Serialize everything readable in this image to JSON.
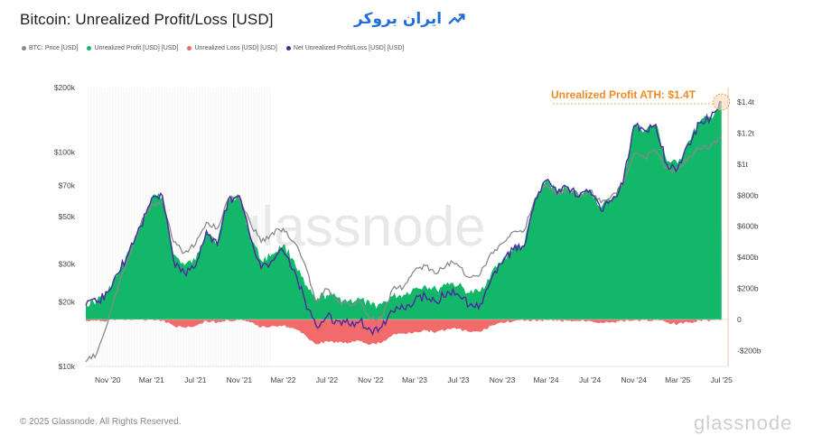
{
  "title": "Bitcoin: Unrealized Profit/Loss [USD]",
  "brand": {
    "text": "ایران بروکر",
    "icon": "trend-arrow-icon",
    "color": "#1f6fd8"
  },
  "legend": [
    {
      "label": "BTC: Price [USD]",
      "color": "#8a8a8a"
    },
    {
      "label": "Unrealized Profit [USD] [USD]",
      "color": "#12b76a"
    },
    {
      "label": "Unrealized Loss [USD] [USD]",
      "color": "#f26b6b"
    },
    {
      "label": "Net Unrealized Profit/Loss [USD] [USD]",
      "color": "#4b2a9e"
    }
  ],
  "watermark": "glassnode",
  "footer": {
    "copyright": "© 2025 Glassnode. All Rights Reserved.",
    "logo": "glassnode"
  },
  "chart_data": {
    "type": "area",
    "annotation": {
      "text": "Unrealized Profit ATH: $1.4T",
      "x": "2025-07",
      "y": 1.4
    },
    "x_ticks": [
      "Nov '20",
      "Mar '21",
      "Jul '21",
      "Nov '21",
      "Mar '22",
      "Jul '22",
      "Nov '22",
      "Mar '23",
      "Jul '23",
      "Nov '23",
      "Mar '24",
      "Jul '24",
      "Nov '24",
      "Mar '25",
      "Jul '25"
    ],
    "left_axis": {
      "scale": "log",
      "unit": "USD",
      "ticks": [
        "$10k",
        "$20k",
        "$30k",
        "$50k",
        "$70k",
        "$100k",
        "$200k"
      ],
      "tick_values": [
        10000,
        20000,
        30000,
        50000,
        70000,
        100000,
        200000
      ]
    },
    "right_axis": {
      "scale": "linear",
      "unit": "trillions USD",
      "ticks": [
        "-$200b",
        "0",
        "$200b",
        "$400b",
        "$600b",
        "$800b",
        "$1t",
        "$1.2t",
        "$1.4t"
      ],
      "tick_values": [
        -0.2,
        0,
        0.2,
        0.4,
        0.6,
        0.8,
        1.0,
        1.2,
        1.4
      ],
      "range": [
        -0.2,
        1.4
      ]
    },
    "series": [
      {
        "name": "BTC: Price [USD]",
        "axis": "left",
        "x": [
          "2020-09",
          "2020-10",
          "2020-11",
          "2020-12",
          "2021-01",
          "2021-02",
          "2021-03",
          "2021-04",
          "2021-05",
          "2021-06",
          "2021-07",
          "2021-08",
          "2021-09",
          "2021-10",
          "2021-11",
          "2021-12",
          "2022-01",
          "2022-02",
          "2022-03",
          "2022-04",
          "2022-05",
          "2022-06",
          "2022-07",
          "2022-08",
          "2022-09",
          "2022-10",
          "2022-11",
          "2022-12",
          "2023-01",
          "2023-02",
          "2023-03",
          "2023-04",
          "2023-05",
          "2023-06",
          "2023-07",
          "2023-08",
          "2023-09",
          "2023-10",
          "2023-11",
          "2023-12",
          "2024-01",
          "2024-02",
          "2024-03",
          "2024-04",
          "2024-05",
          "2024-06",
          "2024-07",
          "2024-08",
          "2024-09",
          "2024-10",
          "2024-11",
          "2024-12",
          "2025-01",
          "2025-02",
          "2025-03",
          "2025-04",
          "2025-05",
          "2025-06",
          "2025-07"
        ],
        "values": [
          10500,
          11500,
          16000,
          24000,
          33000,
          46000,
          57000,
          59000,
          38000,
          34000,
          37000,
          47000,
          44000,
          60000,
          62000,
          47000,
          38000,
          42000,
          44000,
          38000,
          30000,
          20000,
          23000,
          20000,
          19500,
          20000,
          16500,
          16800,
          23000,
          23500,
          28000,
          29500,
          27000,
          30500,
          29500,
          26000,
          27000,
          34000,
          37500,
          42500,
          43000,
          61000,
          70000,
          63000,
          67000,
          62000,
          66000,
          58000,
          63000,
          70000,
          97000,
          94000,
          102000,
          84000,
          82000,
          95000,
          104000,
          107000,
          118000
        ]
      },
      {
        "name": "Unrealized Profit [USD] [USD]",
        "axis": "right",
        "x": [
          "2020-09",
          "2020-10",
          "2020-11",
          "2020-12",
          "2021-01",
          "2021-02",
          "2021-03",
          "2021-04",
          "2021-05",
          "2021-06",
          "2021-07",
          "2021-08",
          "2021-09",
          "2021-10",
          "2021-11",
          "2021-12",
          "2022-01",
          "2022-02",
          "2022-03",
          "2022-04",
          "2022-05",
          "2022-06",
          "2022-07",
          "2022-08",
          "2022-09",
          "2022-10",
          "2022-11",
          "2022-12",
          "2023-01",
          "2023-02",
          "2023-03",
          "2023-04",
          "2023-05",
          "2023-06",
          "2023-07",
          "2023-08",
          "2023-09",
          "2023-10",
          "2023-11",
          "2023-12",
          "2024-01",
          "2024-02",
          "2024-03",
          "2024-04",
          "2024-05",
          "2024-06",
          "2024-07",
          "2024-08",
          "2024-09",
          "2024-10",
          "2024-11",
          "2024-12",
          "2025-01",
          "2025-02",
          "2025-03",
          "2025-04",
          "2025-05",
          "2025-06",
          "2025-07"
        ],
        "values": [
          0.1,
          0.12,
          0.18,
          0.3,
          0.45,
          0.6,
          0.78,
          0.8,
          0.42,
          0.35,
          0.38,
          0.58,
          0.5,
          0.78,
          0.8,
          0.55,
          0.38,
          0.42,
          0.48,
          0.38,
          0.22,
          0.12,
          0.16,
          0.14,
          0.12,
          0.13,
          0.09,
          0.1,
          0.15,
          0.16,
          0.2,
          0.22,
          0.19,
          0.24,
          0.22,
          0.17,
          0.18,
          0.3,
          0.38,
          0.46,
          0.48,
          0.78,
          0.9,
          0.82,
          0.86,
          0.8,
          0.84,
          0.72,
          0.78,
          0.88,
          1.25,
          1.22,
          1.26,
          1.02,
          1.0,
          1.15,
          1.27,
          1.3,
          1.4
        ]
      },
      {
        "name": "Unrealized Loss [USD] [USD]",
        "axis": "right",
        "x": [
          "2020-09",
          "2020-10",
          "2020-11",
          "2020-12",
          "2021-01",
          "2021-02",
          "2021-03",
          "2021-04",
          "2021-05",
          "2021-06",
          "2021-07",
          "2021-08",
          "2021-09",
          "2021-10",
          "2021-11",
          "2021-12",
          "2022-01",
          "2022-02",
          "2022-03",
          "2022-04",
          "2022-05",
          "2022-06",
          "2022-07",
          "2022-08",
          "2022-09",
          "2022-10",
          "2022-11",
          "2022-12",
          "2023-01",
          "2023-02",
          "2023-03",
          "2023-04",
          "2023-05",
          "2023-06",
          "2023-07",
          "2023-08",
          "2023-09",
          "2023-10",
          "2023-11",
          "2023-12",
          "2024-01",
          "2024-02",
          "2024-03",
          "2024-04",
          "2024-05",
          "2024-06",
          "2024-07",
          "2024-08",
          "2024-09",
          "2024-10",
          "2024-11",
          "2024-12",
          "2025-01",
          "2025-02",
          "2025-03",
          "2025-04",
          "2025-05",
          "2025-06",
          "2025-07"
        ],
        "values": [
          -0.01,
          -0.01,
          -0.005,
          0,
          0,
          0,
          0,
          -0.005,
          -0.04,
          -0.05,
          -0.04,
          -0.01,
          -0.02,
          -0.005,
          -0.005,
          -0.02,
          -0.05,
          -0.04,
          -0.04,
          -0.06,
          -0.1,
          -0.16,
          -0.14,
          -0.15,
          -0.15,
          -0.14,
          -0.16,
          -0.15,
          -0.1,
          -0.09,
          -0.08,
          -0.07,
          -0.08,
          -0.06,
          -0.06,
          -0.08,
          -0.08,
          -0.04,
          -0.02,
          -0.01,
          -0.01,
          -0.005,
          -0.005,
          -0.01,
          -0.01,
          -0.01,
          -0.01,
          -0.02,
          -0.015,
          -0.01,
          -0.005,
          -0.005,
          -0.005,
          -0.02,
          -0.03,
          -0.02,
          -0.005,
          -0.005,
          -0.002
        ]
      },
      {
        "name": "Net Unrealized Profit/Loss [USD] [USD]",
        "axis": "right",
        "x": [
          "2020-09",
          "2020-10",
          "2020-11",
          "2020-12",
          "2021-01",
          "2021-02",
          "2021-03",
          "2021-04",
          "2021-05",
          "2021-06",
          "2021-07",
          "2021-08",
          "2021-09",
          "2021-10",
          "2021-11",
          "2021-12",
          "2022-01",
          "2022-02",
          "2022-03",
          "2022-04",
          "2022-05",
          "2022-06",
          "2022-07",
          "2022-08",
          "2022-09",
          "2022-10",
          "2022-11",
          "2022-12",
          "2023-01",
          "2023-02",
          "2023-03",
          "2023-04",
          "2023-05",
          "2023-06",
          "2023-07",
          "2023-08",
          "2023-09",
          "2023-10",
          "2023-11",
          "2023-12",
          "2024-01",
          "2024-02",
          "2024-03",
          "2024-04",
          "2024-05",
          "2024-06",
          "2024-07",
          "2024-08",
          "2024-09",
          "2024-10",
          "2024-11",
          "2024-12",
          "2025-01",
          "2025-02",
          "2025-03",
          "2025-04",
          "2025-05",
          "2025-06",
          "2025-07"
        ],
        "values": [
          0.09,
          0.11,
          0.175,
          0.3,
          0.45,
          0.6,
          0.78,
          0.795,
          0.38,
          0.3,
          0.34,
          0.57,
          0.48,
          0.775,
          0.795,
          0.53,
          0.33,
          0.38,
          0.44,
          0.32,
          0.12,
          -0.04,
          0.02,
          -0.01,
          -0.03,
          -0.01,
          -0.07,
          -0.05,
          0.05,
          0.07,
          0.12,
          0.15,
          0.11,
          0.18,
          0.16,
          0.09,
          0.1,
          0.26,
          0.36,
          0.45,
          0.47,
          0.775,
          0.895,
          0.81,
          0.85,
          0.79,
          0.83,
          0.7,
          0.765,
          0.87,
          1.245,
          1.215,
          1.255,
          1.0,
          0.97,
          1.13,
          1.265,
          1.295,
          1.398
        ]
      }
    ]
  }
}
